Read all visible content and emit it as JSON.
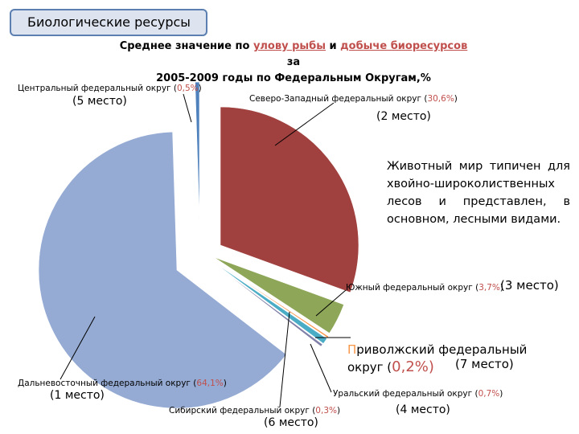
{
  "header": {
    "tab_label": "Биологические ресурсы"
  },
  "title": {
    "line1_a": "Среднее значение по ",
    "line1_b": "улову рыбы",
    "line1_c": " и ",
    "line1_d": "добыче биоресурсов",
    "line1_e": " за",
    "line2": "2005-2009 годы по Федеральным Округам,%"
  },
  "description": "Животный мир типичен для хвойно-широколиственных лесов и представлен, в основном, лесными видами.",
  "colors": {
    "far_east": "#95abd3",
    "northwest": "#a0403f",
    "south": "#8da658",
    "urals": "#4bacc6",
    "siberia": "#7f7fa8",
    "volga": "#f79646",
    "central": "#4f81bd",
    "accent_red": "#c0504d"
  },
  "labels": {
    "central": {
      "name": "Центральный федеральный округ (",
      "pct": "0,5%",
      "close": ")",
      "rank": "(5 место)"
    },
    "northwest": {
      "name": "Северо-Западный федеральный округ (",
      "pct": "30,6%",
      "close": ")",
      "rank": "(2 место)"
    },
    "south": {
      "name": "Южный федеральный округ (",
      "pct": "3,7%",
      "close": ")",
      "rank": "(3 место)"
    },
    "volga": {
      "first": "П",
      "name": "риволжский федеральный",
      "line2": "округ (",
      "pct": "0,2%",
      "close": ")",
      "rank": "(7 место)"
    },
    "urals": {
      "name": "Уральский федеральный округ (",
      "pct": "0,7%",
      "close": ")",
      "rank": "(4 место)"
    },
    "siberia": {
      "name": "Сибирский федеральный округ (",
      "pct": "0,3%",
      "close": ")",
      "rank": "(6 место)"
    },
    "far_east": {
      "name": "Дальневосточный федеральный   округ (",
      "pct": "64,1%",
      "close": ")",
      "rank": "(1 место)"
    }
  },
  "chart_data": {
    "type": "pie",
    "title": "Среднее значение по улову рыбы и добыче биоресурсов за 2005-2009 годы по Федеральным Округам,%",
    "exploded": true,
    "slices": [
      {
        "key": "northwest",
        "label": "Северо-Западный федеральный округ",
        "value": 30.6,
        "rank": 2
      },
      {
        "key": "south",
        "label": "Южный федеральный округ",
        "value": 3.7,
        "rank": 3
      },
      {
        "key": "volga",
        "label": "Приволжский федеральный округ",
        "value": 0.2,
        "rank": 7
      },
      {
        "key": "urals",
        "label": "Уральский федеральный округ",
        "value": 0.7,
        "rank": 4
      },
      {
        "key": "siberia",
        "label": "Сибирский федеральный округ",
        "value": 0.3,
        "rank": 6
      },
      {
        "key": "far_east",
        "label": "Дальневосточный федеральный округ",
        "value": 64.1,
        "rank": 1
      },
      {
        "key": "central",
        "label": "Центральный федеральный округ",
        "value": 0.5,
        "rank": 5
      }
    ]
  }
}
